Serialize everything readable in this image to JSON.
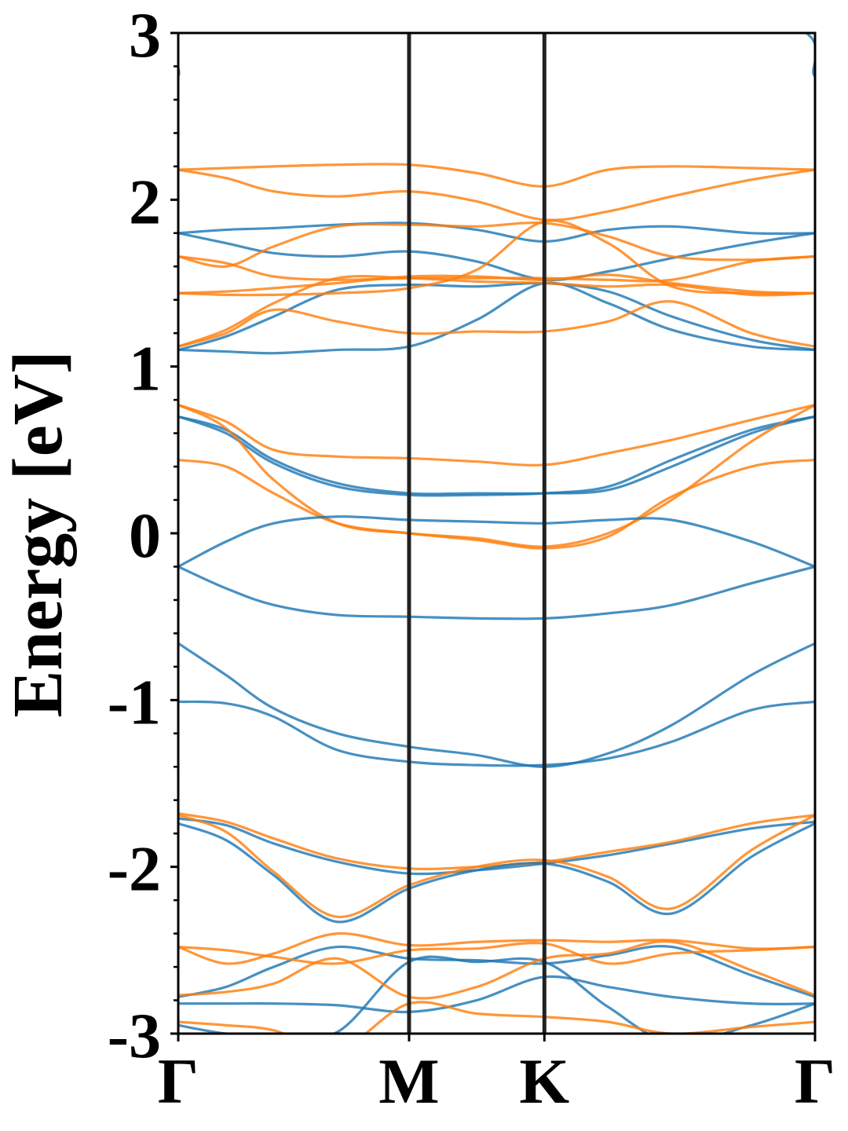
{
  "chart_data": {
    "type": "line",
    "title": "",
    "xlabel": "",
    "ylabel": "Energy [eV]",
    "ylim": [
      -3,
      3
    ],
    "x_ticks": [
      "Γ",
      "M",
      "K",
      "Γ"
    ],
    "y_ticks": [
      "3",
      "2",
      "1",
      "0",
      "-1",
      "-2",
      "-3"
    ],
    "y_tick_values": [
      3,
      2,
      1,
      0,
      -1,
      -2,
      -3
    ],
    "x_domain": [
      0,
      1
    ],
    "kpoint_positions": [
      0,
      0.3625,
      0.575,
      1
    ],
    "grid": false,
    "legend": "none",
    "colors": {
      "blue": "#1f77b4",
      "orange": "#ff7f0e",
      "divider": "#222222"
    },
    "x_sample": [
      0,
      0.075,
      0.15,
      0.25,
      0.3625,
      0.4687,
      0.575,
      0.675,
      0.775,
      0.9,
      1
    ],
    "series": [
      {
        "color": "blue",
        "values": [
          2.74,
          3.2,
          null,
          null,
          null,
          null,
          null,
          null,
          null,
          3.1,
          2.74
        ]
      },
      {
        "color": "blue",
        "values": [
          1.8,
          1.82,
          1.83,
          1.85,
          1.86,
          1.82,
          1.75,
          1.82,
          1.84,
          1.8,
          1.8
        ]
      },
      {
        "color": "blue",
        "values": [
          1.8,
          1.74,
          1.68,
          1.66,
          1.69,
          1.63,
          1.52,
          1.57,
          1.65,
          1.74,
          1.8
        ]
      },
      {
        "color": "blue",
        "values": [
          1.1,
          1.18,
          1.3,
          1.46,
          1.49,
          1.48,
          1.5,
          1.45,
          1.3,
          1.16,
          1.1
        ]
      },
      {
        "color": "blue",
        "values": [
          1.1,
          1.09,
          1.08,
          1.1,
          1.12,
          1.28,
          1.5,
          1.38,
          1.22,
          1.12,
          1.1
        ]
      },
      {
        "color": "orange",
        "values": [
          2.18,
          2.19,
          2.2,
          2.21,
          2.21,
          2.16,
          2.08,
          2.18,
          2.2,
          2.19,
          2.18
        ]
      },
      {
        "color": "orange",
        "values": [
          2.18,
          2.13,
          2.05,
          2.02,
          2.05,
          1.99,
          1.88,
          1.93,
          2.02,
          2.12,
          2.18
        ]
      },
      {
        "color": "orange",
        "values": [
          1.66,
          1.6,
          1.72,
          1.84,
          1.85,
          1.84,
          1.86,
          1.78,
          1.66,
          1.64,
          1.66
        ]
      },
      {
        "color": "orange",
        "values": [
          1.66,
          1.62,
          1.54,
          1.52,
          1.53,
          1.53,
          1.53,
          1.52,
          1.52,
          1.63,
          1.66
        ]
      },
      {
        "color": "orange",
        "values": [
          1.44,
          1.45,
          1.47,
          1.5,
          1.54,
          1.54,
          1.52,
          1.55,
          1.5,
          1.45,
          1.44
        ]
      },
      {
        "color": "orange",
        "values": [
          1.44,
          1.43,
          1.43,
          1.44,
          1.47,
          1.58,
          1.87,
          1.74,
          1.48,
          1.44,
          1.44
        ]
      },
      {
        "color": "orange",
        "values": [
          1.12,
          1.22,
          1.38,
          1.53,
          1.53,
          1.51,
          1.5,
          1.48,
          1.49,
          1.43,
          1.44
        ]
      },
      {
        "color": "orange",
        "values": [
          1.12,
          1.2,
          1.34,
          1.27,
          1.2,
          1.21,
          1.21,
          1.27,
          1.39,
          1.2,
          1.12
        ]
      },
      {
        "color": "blue",
        "values": [
          0.7,
          0.62,
          0.44,
          0.3,
          0.24,
          0.24,
          0.24,
          0.26,
          0.4,
          0.6,
          0.7
        ]
      },
      {
        "color": "blue",
        "values": [
          0.7,
          0.6,
          0.42,
          0.28,
          0.23,
          0.23,
          0.24,
          0.28,
          0.44,
          0.62,
          0.7
        ]
      },
      {
        "color": "orange",
        "values": [
          0.77,
          0.67,
          0.5,
          0.46,
          0.45,
          0.43,
          0.41,
          0.48,
          0.56,
          0.68,
          0.77
        ]
      },
      {
        "color": "orange",
        "values": [
          0.77,
          0.63,
          0.32,
          0.06,
          0.0,
          -0.03,
          -0.08,
          0.0,
          0.2,
          0.55,
          0.77
        ]
      },
      {
        "color": "orange",
        "values": [
          0.44,
          0.4,
          0.24,
          0.06,
          0.0,
          -0.04,
          -0.09,
          -0.02,
          0.22,
          0.4,
          0.44
        ]
      },
      {
        "color": "blue",
        "values": [
          -0.2,
          -0.05,
          0.06,
          0.1,
          0.08,
          0.07,
          0.06,
          0.08,
          0.08,
          -0.05,
          -0.2
        ]
      },
      {
        "color": "blue",
        "values": [
          -0.2,
          -0.33,
          -0.43,
          -0.49,
          -0.5,
          -0.51,
          -0.51,
          -0.48,
          -0.43,
          -0.3,
          -0.2
        ]
      },
      {
        "color": "blue",
        "values": [
          -0.66,
          -0.85,
          -1.05,
          -1.2,
          -1.28,
          -1.33,
          -1.4,
          -1.32,
          -1.15,
          -0.85,
          -0.66
        ]
      },
      {
        "color": "blue",
        "values": [
          -1.01,
          -1.02,
          -1.1,
          -1.3,
          -1.37,
          -1.39,
          -1.39,
          -1.35,
          -1.25,
          -1.06,
          -1.01
        ]
      },
      {
        "color": "blue",
        "values": [
          -1.71,
          -1.75,
          -1.86,
          -1.97,
          -2.04,
          -2.02,
          -1.98,
          -1.93,
          -1.86,
          -1.77,
          -1.73
        ]
      },
      {
        "color": "orange",
        "values": [
          -1.68,
          -1.73,
          -1.83,
          -1.95,
          -2.01,
          -2.0,
          -1.97,
          -1.91,
          -1.85,
          -1.74,
          -1.69
        ]
      },
      {
        "color": "blue",
        "values": [
          -1.74,
          -1.84,
          -2.05,
          -2.33,
          -2.13,
          -2.02,
          -1.98,
          -2.09,
          -2.28,
          -1.94,
          -1.74
        ]
      },
      {
        "color": "orange",
        "values": [
          -1.69,
          -1.79,
          -2.03,
          -2.3,
          -2.11,
          -2.0,
          -1.96,
          -2.06,
          -2.25,
          -1.9,
          -1.69
        ]
      },
      {
        "color": "blue",
        "values": [
          -2.78,
          -2.72,
          -2.6,
          -2.48,
          -2.55,
          -2.56,
          -2.58,
          -2.53,
          -2.48,
          -2.65,
          -2.78
        ]
      },
      {
        "color": "blue",
        "values": [
          -2.82,
          -2.82,
          -2.82,
          -2.83,
          -2.87,
          -2.8,
          -2.66,
          -2.72,
          -2.78,
          -2.82,
          -2.82
        ]
      },
      {
        "color": "blue",
        "values": [
          -2.95,
          -3.0,
          -3.01,
          -2.99,
          -2.57,
          -2.57,
          -2.57,
          -2.84,
          -3.05,
          -2.95,
          -2.82
        ]
      },
      {
        "color": "orange",
        "values": [
          -2.48,
          -2.58,
          -2.52,
          -2.4,
          -2.47,
          -2.45,
          -2.44,
          -2.45,
          -2.44,
          -2.49,
          -2.48
        ]
      },
      {
        "color": "orange",
        "values": [
          -2.48,
          -2.5,
          -2.54,
          -2.58,
          -2.5,
          -2.49,
          -2.46,
          -2.58,
          -2.52,
          -2.5,
          -2.48
        ]
      },
      {
        "color": "orange",
        "values": [
          -2.77,
          -2.75,
          -2.7,
          -2.55,
          -2.78,
          -2.72,
          -2.55,
          -2.52,
          -2.45,
          -2.62,
          -2.77
        ]
      },
      {
        "color": "orange",
        "values": [
          -2.93,
          -2.95,
          -2.98,
          -3.1,
          -2.82,
          -2.88,
          -2.9,
          -2.93,
          -3.0,
          -2.96,
          -2.93
        ]
      }
    ]
  }
}
